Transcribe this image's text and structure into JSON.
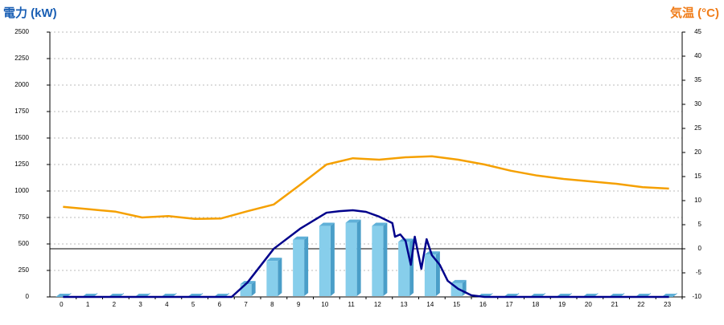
{
  "chart_data": {
    "type": "bar",
    "y_label": "電力 (kW)",
    "y2_label": "気温 (°C)",
    "categories": [
      "0",
      "1",
      "2",
      "3",
      "4",
      "5",
      "6",
      "7",
      "8",
      "9",
      "10",
      "11",
      "12",
      "13",
      "14",
      "15",
      "16",
      "17",
      "18",
      "19",
      "20",
      "21",
      "22",
      "23"
    ],
    "ylim": [
      0,
      2500
    ],
    "yticks": [
      0,
      250,
      500,
      750,
      1000,
      1250,
      1500,
      1750,
      2000,
      2250,
      2500
    ],
    "y2lim": [
      -10,
      45
    ],
    "y2ticks": [
      -10,
      -5,
      0,
      5,
      10,
      15,
      20,
      25,
      30,
      35,
      40,
      45
    ],
    "grid": true,
    "series": [
      {
        "type": "bar",
        "color": "#87ceeb",
        "values": [
          0,
          0,
          0,
          0,
          0,
          0,
          0,
          120,
          340,
          540,
          670,
          700,
          670,
          520,
          400,
          130,
          0,
          0,
          0,
          0,
          0,
          0,
          0,
          0
        ]
      },
      {
        "type": "line",
        "color": "#00008b",
        "x": [
          0,
          6.4,
          7,
          8,
          9,
          10,
          10.5,
          11,
          11.5,
          12,
          12.5,
          12.6,
          12.8,
          13,
          13.2,
          13.35,
          13.6,
          13.8,
          14,
          14.3,
          14.6,
          15,
          15.5,
          16,
          23
        ],
        "values": [
          0,
          0,
          136,
          455,
          644,
          795,
          810,
          818,
          803,
          758,
          697,
          568,
          590,
          530,
          303,
          568,
          265,
          545,
          394,
          303,
          152,
          76,
          15,
          0,
          0
        ]
      },
      {
        "type": "line",
        "axis": "y2",
        "color": "#f5a000",
        "values": [
          8.7,
          8.2,
          7.7,
          6.5,
          6.8,
          6.2,
          6.3,
          7.8,
          9.2,
          13.3,
          17.5,
          18.8,
          18.5,
          19,
          19.2,
          18.5,
          17.5,
          16.2,
          15.2,
          14.5,
          14,
          13.5,
          12.8,
          12.5
        ]
      }
    ]
  }
}
